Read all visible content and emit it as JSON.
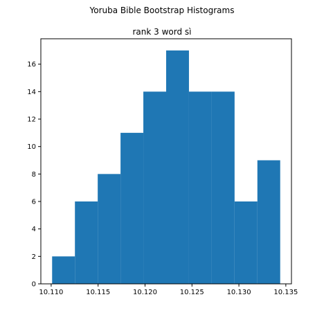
{
  "figure_title": "Yoruba Bible Bootstrap Histograms",
  "chart_data": {
    "type": "bar",
    "title": "rank 3 word sì",
    "xlabel": "",
    "ylabel": "",
    "bin_edges": [
      10.1101,
      10.11253,
      10.11496,
      10.11739,
      10.11982,
      10.12225,
      10.12468,
      10.12711,
      10.12954,
      10.13197,
      10.1344
    ],
    "values": [
      2,
      6,
      8,
      11,
      14,
      17,
      14,
      14,
      6,
      9
    ],
    "xlim": [
      10.1089,
      10.1356
    ],
    "ylim": [
      0,
      17.85
    ],
    "xticks": [
      10.11,
      10.115,
      10.12,
      10.125,
      10.13,
      10.135
    ],
    "xtick_labels": [
      "10.110",
      "10.115",
      "10.120",
      "10.125",
      "10.130",
      "10.135"
    ],
    "yticks": [
      0,
      2,
      4,
      6,
      8,
      10,
      12,
      14,
      16
    ],
    "ytick_labels": [
      "0",
      "2",
      "4",
      "6",
      "8",
      "10",
      "12",
      "14",
      "16"
    ],
    "bar_color": "#1f77b4",
    "grid": false,
    "legend": "none"
  }
}
